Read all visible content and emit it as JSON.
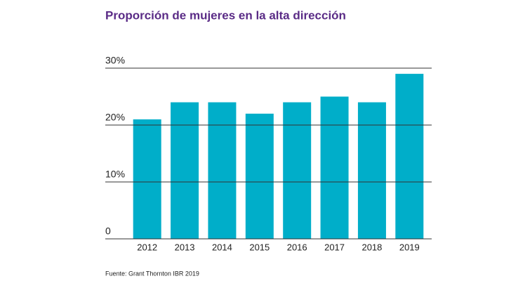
{
  "chart_data": {
    "type": "bar",
    "title": "Proporción de mujeres en la alta dirección",
    "categories": [
      "2012",
      "2013",
      "2014",
      "2015",
      "2016",
      "2017",
      "2018",
      "2019"
    ],
    "values": [
      21,
      24,
      24,
      22,
      24,
      25,
      24,
      29
    ],
    "color": "#00aec9",
    "ylim": [
      0,
      30
    ],
    "yticks": [
      0,
      {
        "value": 10,
        "label": "10%"
      },
      {
        "value": 20,
        "label": "20%"
      },
      {
        "value": 30,
        "label": "30%"
      }
    ],
    "grid": true,
    "source": "Fuente: Grant Thornton IBR 2019"
  }
}
